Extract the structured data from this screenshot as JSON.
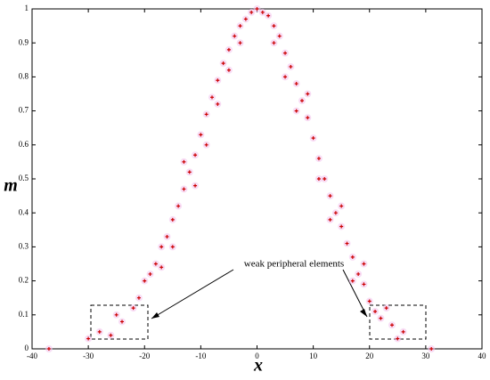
{
  "chart_data": {
    "type": "scatter",
    "x_label": "x",
    "y_label": "m",
    "annotation": "weak peripheral elements",
    "color": "#cc0000",
    "xlim": [
      -40,
      40
    ],
    "xticks": [
      -40,
      -30,
      -20,
      -10,
      0,
      10,
      20,
      30,
      40
    ],
    "ylim": [
      0,
      1
    ],
    "yticks": [
      0,
      0.1,
      0.2,
      0.3,
      0.4,
      0.5,
      0.6,
      0.7,
      0.8,
      0.9,
      1
    ],
    "x": [
      -37,
      -30,
      -28,
      -26,
      -24,
      -22,
      -21,
      -20,
      -19,
      -18,
      -17,
      -16,
      -15,
      -14,
      -13,
      -12,
      -11,
      -10,
      -9,
      -8,
      -7,
      -6,
      -5,
      -4,
      -3,
      -2,
      -1,
      0,
      1,
      2,
      3,
      4,
      5,
      6,
      7,
      8,
      9,
      10,
      11,
      12,
      13,
      14,
      15,
      16,
      17,
      18,
      19,
      20,
      21,
      22,
      24,
      26,
      31,
      -17,
      -15,
      -13,
      -11,
      -9,
      -7,
      -5,
      -3,
      3,
      5,
      7,
      9,
      11,
      13,
      15,
      17,
      19,
      23,
      -25,
      25
    ],
    "y": [
      0.0,
      0.03,
      0.05,
      0.04,
      0.08,
      0.12,
      0.15,
      0.2,
      0.22,
      0.25,
      0.3,
      0.33,
      0.38,
      0.42,
      0.47,
      0.52,
      0.57,
      0.63,
      0.69,
      0.74,
      0.79,
      0.84,
      0.88,
      0.92,
      0.95,
      0.97,
      0.99,
      1.0,
      0.99,
      0.98,
      0.95,
      0.92,
      0.87,
      0.83,
      0.78,
      0.73,
      0.68,
      0.62,
      0.56,
      0.5,
      0.45,
      0.4,
      0.36,
      0.31,
      0.27,
      0.22,
      0.19,
      0.14,
      0.11,
      0.09,
      0.07,
      0.05,
      0.0,
      0.24,
      0.3,
      0.55,
      0.48,
      0.6,
      0.72,
      0.82,
      0.9,
      0.9,
      0.8,
      0.7,
      0.75,
      0.5,
      0.38,
      0.42,
      0.2,
      0.25,
      0.12,
      0.1,
      0.03
    ]
  }
}
